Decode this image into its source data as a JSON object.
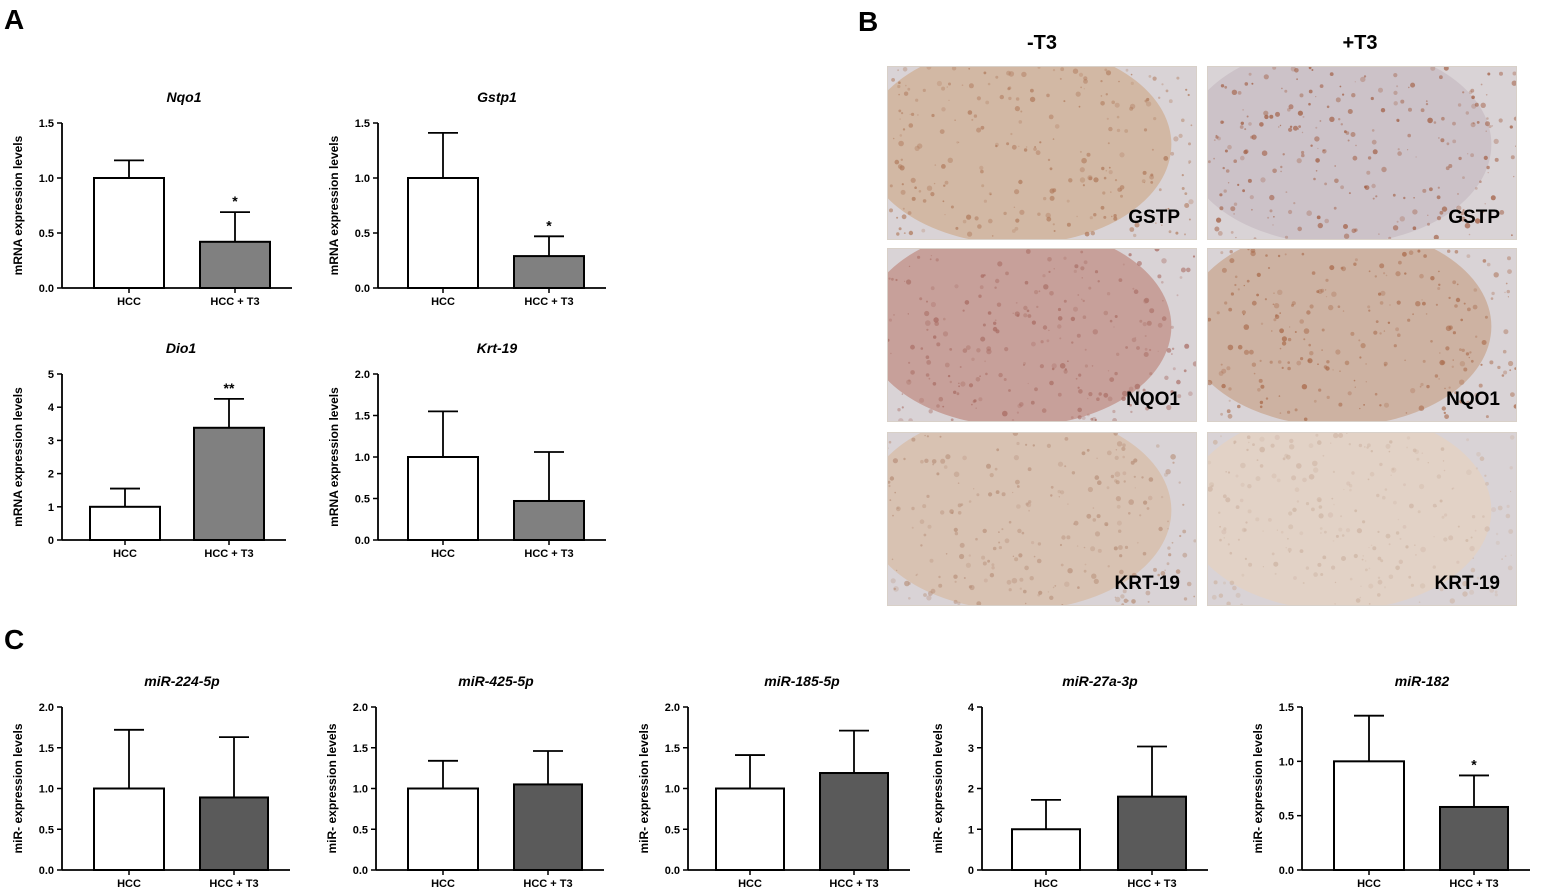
{
  "panels": {
    "A": "A",
    "B": "B",
    "C": "C"
  },
  "micrographs": {
    "col_minus": "-T3",
    "col_plus": "+T3",
    "tiles": [
      {
        "stain": "GSTP",
        "condition": "-T3",
        "base": "#d2b8a4",
        "spot": "#b07a5c"
      },
      {
        "stain": "GSTP",
        "condition": "+T3",
        "base": "#ccc2c8",
        "spot": "#a05a3e"
      },
      {
        "stain": "NQO1",
        "condition": "-T3",
        "base": "#c7a09a",
        "spot": "#a86b62"
      },
      {
        "stain": "NQO1",
        "condition": "+T3",
        "base": "#cdb2a2",
        "spot": "#a86848"
      },
      {
        "stain": "KRT-19",
        "condition": "-T3",
        "base": "#d8c2b2",
        "spot": "#b8907a"
      },
      {
        "stain": "KRT-19",
        "condition": "+T3",
        "base": "#e2d2c6",
        "spot": "#cdb3a2"
      }
    ]
  },
  "chart_data": [
    {
      "type": "bar",
      "title": "Nqo1",
      "ylabel": "mRNA expression levels",
      "categories": [
        "HCC",
        "HCC + T3"
      ],
      "values": [
        1.0,
        0.42
      ],
      "errors": [
        0.16,
        0.27
      ],
      "ylim": [
        0,
        1.5
      ],
      "yticks": [
        "0.0",
        "0.5",
        "1.0",
        "1.5"
      ],
      "significance": [
        "",
        "*"
      ],
      "bar_colors": [
        "#ffffff",
        "#808080"
      ]
    },
    {
      "type": "bar",
      "title": "Gstp1",
      "ylabel": "mRNA expression levels",
      "categories": [
        "HCC",
        "HCC + T3"
      ],
      "values": [
        1.0,
        0.29
      ],
      "errors": [
        0.41,
        0.18
      ],
      "ylim": [
        0,
        1.5
      ],
      "yticks": [
        "0.0",
        "0.5",
        "1.0",
        "1.5"
      ],
      "significance": [
        "",
        "*"
      ],
      "bar_colors": [
        "#ffffff",
        "#808080"
      ]
    },
    {
      "type": "bar",
      "title": "Dio1",
      "ylabel": "mRNA expression levels",
      "categories": [
        "HCC",
        "HCC + T3"
      ],
      "values": [
        1.0,
        3.38
      ],
      "errors": [
        0.55,
        0.87
      ],
      "ylim": [
        0,
        5
      ],
      "yticks": [
        "0",
        "1",
        "2",
        "3",
        "4",
        "5"
      ],
      "significance": [
        "",
        "**"
      ],
      "bar_colors": [
        "#ffffff",
        "#808080"
      ]
    },
    {
      "type": "bar",
      "title": "Krt-19",
      "ylabel": "mRNA expression levels",
      "categories": [
        "HCC",
        "HCC + T3"
      ],
      "values": [
        1.0,
        0.47
      ],
      "errors": [
        0.55,
        0.59
      ],
      "ylim": [
        0,
        2.0
      ],
      "yticks": [
        "0.0",
        "0.5",
        "1.0",
        "1.5",
        "2.0"
      ],
      "significance": [
        "",
        ""
      ],
      "bar_colors": [
        "#ffffff",
        "#808080"
      ]
    },
    {
      "type": "bar",
      "title": "miR-224-5p",
      "ylabel": "miR- expression levels",
      "categories": [
        "HCC",
        "HCC + T3"
      ],
      "values": [
        1.0,
        0.89
      ],
      "errors": [
        0.72,
        0.74
      ],
      "ylim": [
        0,
        2.0
      ],
      "yticks": [
        "0.0",
        "0.5",
        "1.0",
        "1.5",
        "2.0"
      ],
      "significance": [
        "",
        ""
      ],
      "bar_colors": [
        "#ffffff",
        "#5a5a5a"
      ]
    },
    {
      "type": "bar",
      "title": "miR-425-5p",
      "ylabel": "miR- expression levels",
      "categories": [
        "HCC",
        "HCC + T3"
      ],
      "values": [
        1.0,
        1.05
      ],
      "errors": [
        0.34,
        0.41
      ],
      "ylim": [
        0,
        2.0
      ],
      "yticks": [
        "0.0",
        "0.5",
        "1.0",
        "1.5",
        "2.0"
      ],
      "significance": [
        "",
        ""
      ],
      "bar_colors": [
        "#ffffff",
        "#5a5a5a"
      ]
    },
    {
      "type": "bar",
      "title": "miR-185-5p",
      "ylabel": "miR- expression levels",
      "categories": [
        "HCC",
        "HCC + T3"
      ],
      "values": [
        1.0,
        1.19
      ],
      "errors": [
        0.41,
        0.52
      ],
      "ylim": [
        0,
        2.0
      ],
      "yticks": [
        "0.0",
        "0.5",
        "1.0",
        "1.5",
        "2.0"
      ],
      "significance": [
        "",
        ""
      ],
      "bar_colors": [
        "#ffffff",
        "#5a5a5a"
      ]
    },
    {
      "type": "bar",
      "title": "miR-27a-3p",
      "ylabel": "miR- expression levels",
      "categories": [
        "HCC",
        "HCC + T3"
      ],
      "values": [
        1.0,
        1.8
      ],
      "errors": [
        0.72,
        1.23
      ],
      "ylim": [
        0,
        4
      ],
      "yticks": [
        "0",
        "1",
        "2",
        "3",
        "4"
      ],
      "significance": [
        "",
        ""
      ],
      "bar_colors": [
        "#ffffff",
        "#5a5a5a"
      ]
    },
    {
      "type": "bar",
      "title": "miR-182",
      "ylabel": "miR- expression levels",
      "categories": [
        "HCC",
        "HCC + T3"
      ],
      "values": [
        1.0,
        0.58
      ],
      "errors": [
        0.42,
        0.29
      ],
      "ylim": [
        0,
        1.5
      ],
      "yticks": [
        "0.0",
        "0.5",
        "1.0",
        "1.5"
      ],
      "significance": [
        "",
        "*"
      ],
      "bar_colors": [
        "#ffffff",
        "#5a5a5a"
      ]
    }
  ]
}
